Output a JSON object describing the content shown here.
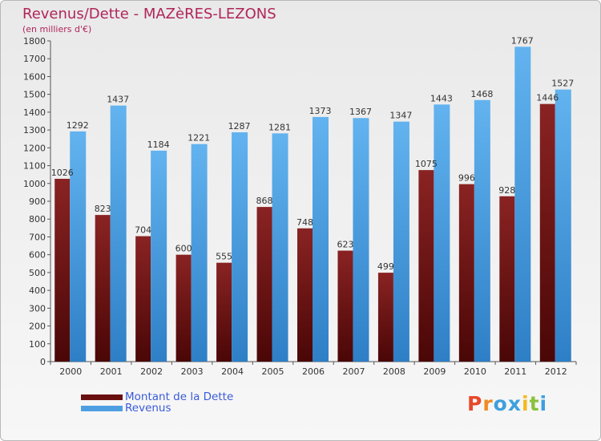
{
  "chart_title": "Revenus/Dette - MAZèRES-LEZONS",
  "chart_subtitle": "(en milliers d'€)",
  "colors": {
    "dette": "#7a1616",
    "revenus": "#4e9fe2",
    "title": "#b0255a",
    "legend_text": "#3a5bd9"
  },
  "logo": {
    "text": "Proxiti",
    "letters": [
      "P",
      "r",
      "o",
      "x",
      "i",
      "t",
      "i"
    ],
    "colors": [
      "#e8482a",
      "#f08a24",
      "#3ea0dd",
      "#3ea0dd",
      "#f5b81e",
      "#89c23d",
      "#3ea0dd"
    ]
  },
  "chart_data": {
    "type": "bar",
    "categories": [
      "2000",
      "2001",
      "2002",
      "2003",
      "2004",
      "2005",
      "2006",
      "2007",
      "2008",
      "2009",
      "2010",
      "2011",
      "2012"
    ],
    "series": [
      {
        "name": "Montant de la Dette",
        "values": [
          1026,
          823,
          704,
          600,
          555,
          868,
          748,
          623,
          499,
          1075,
          996,
          928,
          1446
        ]
      },
      {
        "name": "Revenus",
        "values": [
          1292,
          1437,
          1184,
          1221,
          1287,
          1281,
          1373,
          1367,
          1347,
          1443,
          1468,
          1767,
          1527
        ]
      }
    ],
    "ylim": [
      0,
      1800
    ],
    "yticks": [
      0,
      100,
      200,
      300,
      400,
      500,
      600,
      700,
      800,
      900,
      1000,
      1100,
      1200,
      1300,
      1400,
      1500,
      1600,
      1700,
      1800
    ],
    "grid": false,
    "legend": "bottom-left"
  }
}
